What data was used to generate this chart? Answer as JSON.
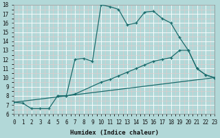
{
  "xlabel": "Humidex (Indice chaleur)",
  "bg_color": "#b2d8d8",
  "grid_color": "#d4eded",
  "line_color": "#1a6b6b",
  "xlim": [
    0,
    23
  ],
  "ylim": [
    6,
    18
  ],
  "xticks": [
    0,
    1,
    2,
    3,
    4,
    5,
    6,
    7,
    8,
    9,
    10,
    11,
    12,
    13,
    14,
    15,
    16,
    17,
    18,
    19,
    20,
    21,
    22,
    23
  ],
  "yticks": [
    6,
    7,
    8,
    9,
    10,
    11,
    12,
    13,
    14,
    15,
    16,
    17,
    18
  ],
  "line1_x": [
    0,
    1,
    2,
    3,
    4,
    5,
    6,
    7,
    8,
    9,
    10,
    11,
    12,
    13,
    14,
    15,
    16,
    17,
    18,
    19,
    20,
    21,
    22,
    23
  ],
  "line1_y": [
    7.3,
    7.2,
    6.6,
    6.6,
    6.6,
    8.0,
    8.0,
    12.0,
    12.1,
    11.8,
    18.0,
    17.8,
    17.5,
    15.8,
    16.0,
    17.2,
    17.3,
    16.5,
    16.0,
    14.4,
    13.0,
    11.0,
    10.3,
    10.0
  ],
  "line2_x": [
    5,
    6,
    7,
    10,
    11,
    12,
    13,
    14,
    15,
    16,
    17,
    18,
    19,
    20,
    21,
    22,
    23
  ],
  "line2_y": [
    8.0,
    8.0,
    8.2,
    9.5,
    9.8,
    10.2,
    10.6,
    11.0,
    11.4,
    11.8,
    12.0,
    12.2,
    13.0,
    13.0,
    11.0,
    10.3,
    10.0
  ],
  "line3_x": [
    0,
    23
  ],
  "line3_y": [
    7.3,
    10.0
  ]
}
